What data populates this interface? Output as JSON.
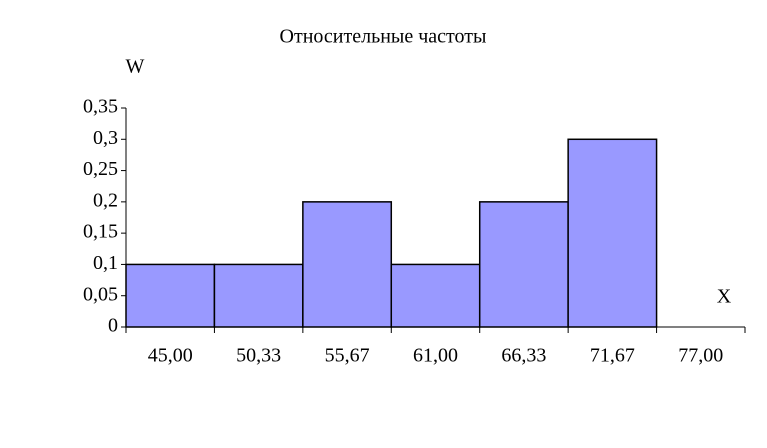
{
  "chart_data": {
    "type": "bar",
    "title": "Относительные частоты",
    "y_label": "W",
    "x_label": "X",
    "categories": [
      "45,00",
      "50,33",
      "55,67",
      "61,00",
      "66,33",
      "71,67",
      "77,00"
    ],
    "values": [
      0.1,
      0.1,
      0.2,
      0.1,
      0.2,
      0.3,
      null
    ],
    "color": "#9999ff",
    "ylim": [
      0,
      0.35
    ],
    "yticks": [
      0,
      {
        "value": 0.05,
        "label": "0,05"
      },
      {
        "value": 0.1,
        "label": "0,1"
      },
      {
        "value": 0.15,
        "label": "0,15"
      },
      {
        "value": 0.2,
        "label": "0,2"
      },
      {
        "value": 0.25,
        "label": "0,25"
      },
      {
        "value": 0.3,
        "label": "0,3"
      },
      {
        "value": 0.35,
        "label": "0,35"
      }
    ],
    "grid": false
  }
}
